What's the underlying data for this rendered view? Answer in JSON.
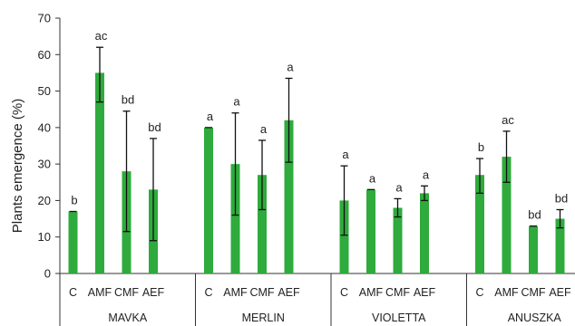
{
  "chart_data": {
    "type": "bar",
    "title": "",
    "xlabel": "",
    "ylabel": "Plants emergence (%)",
    "ylim": [
      0,
      70
    ],
    "yticks": [
      0,
      10,
      20,
      30,
      40,
      50,
      60,
      70
    ],
    "grid": false,
    "legend": "none",
    "bar_color": "#2eab3c",
    "groups": [
      {
        "name": "MAVKA",
        "bars": [
          {
            "category": "C",
            "value": 17,
            "err_low": 17,
            "err_high": 17,
            "label": "b"
          },
          {
            "category": "AMF",
            "value": 55,
            "err_low": 47,
            "err_high": 62,
            "label": "ac"
          },
          {
            "category": "CMF",
            "value": 28,
            "err_low": 11.5,
            "err_high": 44.5,
            "label": "bd"
          },
          {
            "category": "AEF",
            "value": 23,
            "err_low": 9,
            "err_high": 37,
            "label": "bd"
          }
        ]
      },
      {
        "name": "MERLIN",
        "bars": [
          {
            "category": "C",
            "value": 40,
            "err_low": 40,
            "err_high": 40,
            "label": "a"
          },
          {
            "category": "AMF",
            "value": 30,
            "err_low": 16,
            "err_high": 44,
            "label": "a"
          },
          {
            "category": "CMF",
            "value": 27,
            "err_low": 17.5,
            "err_high": 36.5,
            "label": "a"
          },
          {
            "category": "AEF",
            "value": 42,
            "err_low": 30.5,
            "err_high": 53.5,
            "label": "a"
          }
        ]
      },
      {
        "name": "VIOLETTA",
        "bars": [
          {
            "category": "C",
            "value": 20,
            "err_low": 10.5,
            "err_high": 29.5,
            "label": "a"
          },
          {
            "category": "AMF",
            "value": 23,
            "err_low": 23,
            "err_high": 23,
            "label": "a"
          },
          {
            "category": "CMF",
            "value": 18,
            "err_low": 15.5,
            "err_high": 20.5,
            "label": "a"
          },
          {
            "category": "AEF",
            "value": 22,
            "err_low": 20,
            "err_high": 24,
            "label": "a"
          }
        ]
      },
      {
        "name": "ANUSZKA",
        "bars": [
          {
            "category": "C",
            "value": 27,
            "err_low": 22,
            "err_high": 31.5,
            "label": "b"
          },
          {
            "category": "AMF",
            "value": 32,
            "err_low": 25,
            "err_high": 39,
            "label": "ac"
          },
          {
            "category": "CMF",
            "value": 13,
            "err_low": 13,
            "err_high": 13,
            "label": "bd"
          },
          {
            "category": "AEF",
            "value": 15,
            "err_low": 12.5,
            "err_high": 17.5,
            "label": "bd"
          }
        ]
      }
    ]
  }
}
